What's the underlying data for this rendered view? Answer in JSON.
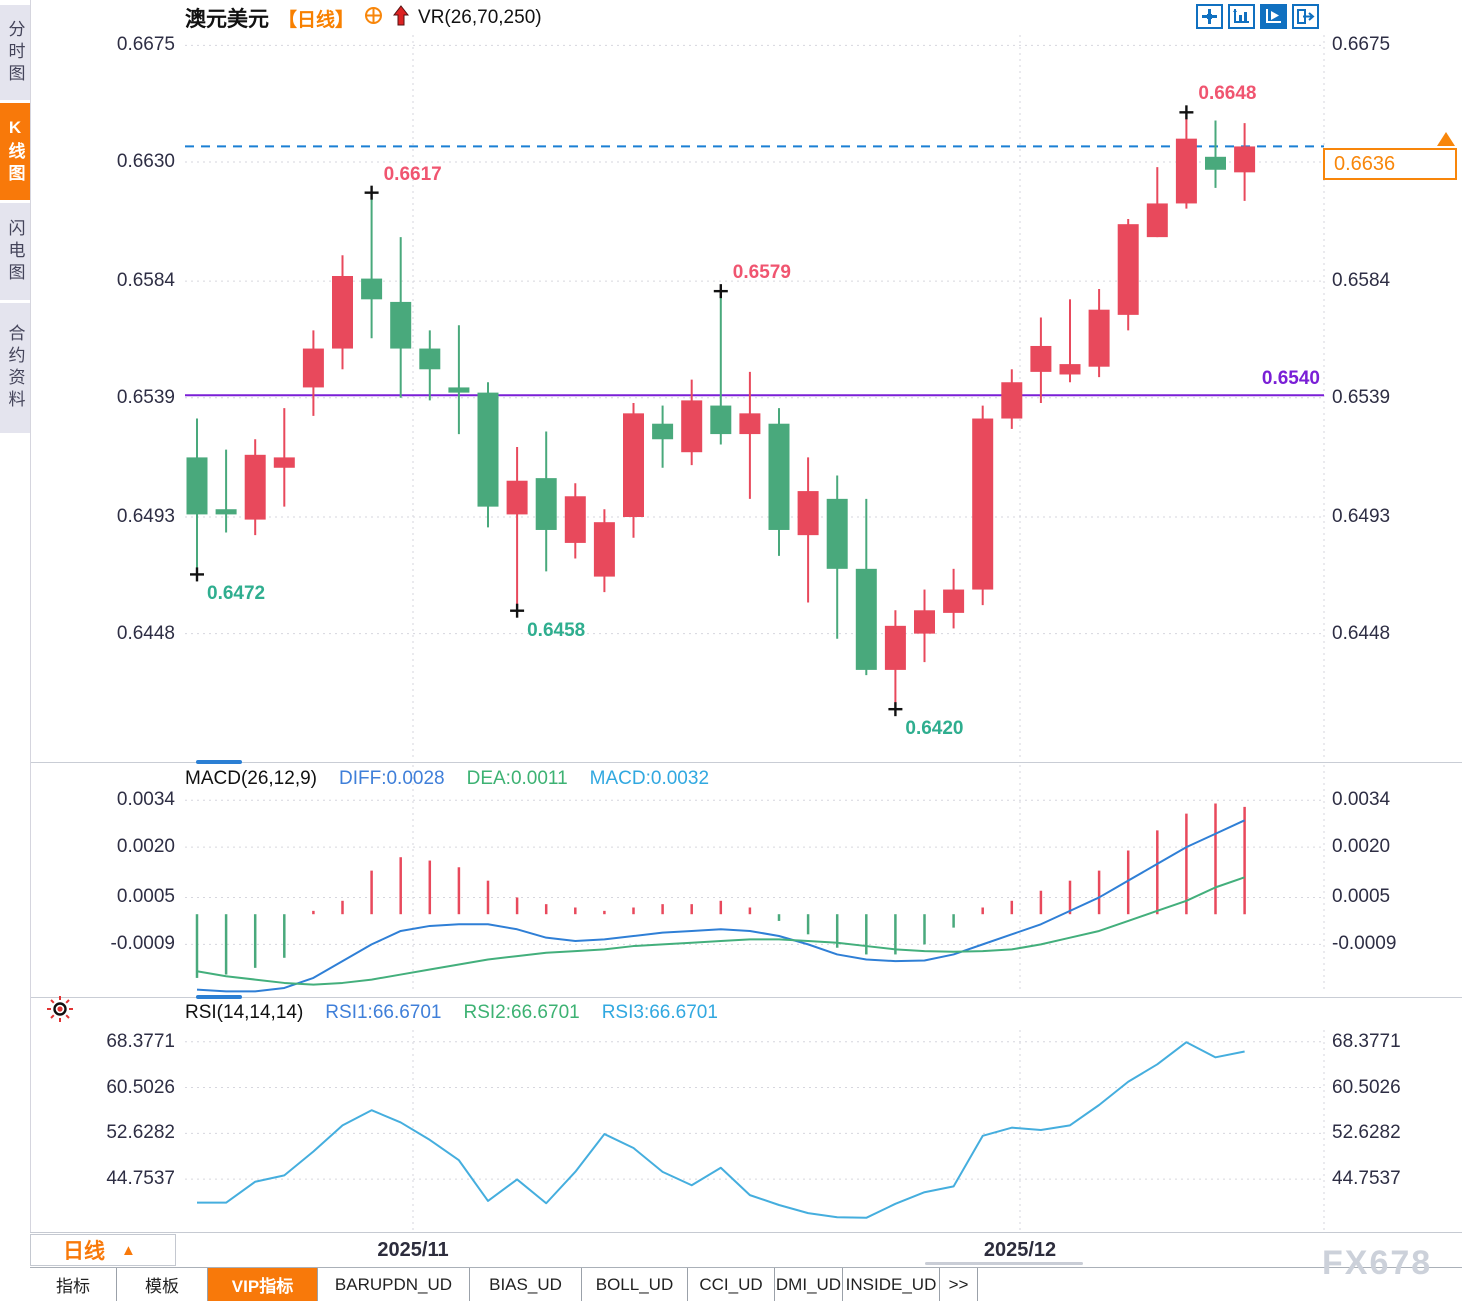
{
  "header": {
    "symbol": "澳元美元",
    "period_tag": "【日线】",
    "indicator": "VR(26,70,250)",
    "icons": [
      "target-circle-icon",
      "red-up-arrow-icon"
    ]
  },
  "sidebar": {
    "items": [
      {
        "label": "分时图",
        "active": false
      },
      {
        "label": "K线图",
        "active": true
      },
      {
        "label": "闪电图",
        "active": false
      },
      {
        "label": "合约资料",
        "active": false
      }
    ]
  },
  "toolbar": {
    "buttons": [
      "pan-tool-icon",
      "axis-range-icon",
      "axis-track-icon",
      "jump-to-latest-icon"
    ],
    "active_index": 2
  },
  "main_panel": {
    "last_price": "0.6636",
    "support_label": "0.6540"
  },
  "macd_panel": {
    "title": "MACD(26,12,9)",
    "diff": "DIFF:0.0028",
    "dea": "DEA:0.0011",
    "macd": "MACD:0.0032"
  },
  "rsi_panel": {
    "title": "RSI(14,14,14)",
    "rsi1": "RSI1:66.6701",
    "rsi2": "RSI2:66.6701",
    "rsi3": "RSI3:66.6701"
  },
  "bottom_bar": {
    "period_label": "日线",
    "period_arrow": "▲",
    "watermark": "FX678"
  },
  "tabs": [
    "指标",
    "模板",
    "VIP指标",
    "BARUPDN_UD",
    "BIAS_UD",
    "BOLL_UD",
    "CCI_UD",
    "DMI_UD",
    "INSIDE_UD",
    ">>"
  ],
  "colors": {
    "up": "#e8495c",
    "down": "#49a97c",
    "accent_orange": "#f8790a",
    "blue_dashed": "#1a7fd4",
    "purple_line": "#7a1fd6",
    "diff_blue": "#2f7fd6",
    "dea_green": "#43af7c",
    "rsi_cyan": "#45aede",
    "high_label": "#f05570",
    "low_label": "#2fae8f",
    "grid": "#d6d6de"
  },
  "chart_data": [
    {
      "type": "candlestick",
      "title": "澳元美元 日线",
      "yticks": [
        "0.6675",
        "0.6630",
        "0.6584",
        "0.6539",
        "0.6493",
        "0.6448"
      ],
      "ylim": [
        0.64,
        0.6679
      ],
      "grid": true,
      "x_dates": [
        "2025/11",
        "2025/12"
      ],
      "candles": [
        [
          0.6516,
          0.6531,
          0.6472,
          0.6494
        ],
        [
          0.6496,
          0.6519,
          0.6487,
          0.6494
        ],
        [
          0.6492,
          0.6523,
          0.6486,
          0.6517
        ],
        [
          0.6512,
          0.6535,
          0.6497,
          0.6516
        ],
        [
          0.6543,
          0.6565,
          0.6532,
          0.6558
        ],
        [
          0.6558,
          0.6594,
          0.655,
          0.6586
        ],
        [
          0.6585,
          0.6617,
          0.6562,
          0.6577
        ],
        [
          0.6576,
          0.6601,
          0.6539,
          0.6558
        ],
        [
          0.6558,
          0.6565,
          0.6538,
          0.655
        ],
        [
          0.6543,
          0.6567,
          0.6525,
          0.6541
        ],
        [
          0.6541,
          0.6545,
          0.6489,
          0.6497
        ],
        [
          0.6494,
          0.652,
          0.6458,
          0.6507
        ],
        [
          0.6508,
          0.6526,
          0.6472,
          0.6488
        ],
        [
          0.6483,
          0.6506,
          0.6477,
          0.6501
        ],
        [
          0.647,
          0.6496,
          0.6464,
          0.6491
        ],
        [
          0.6493,
          0.6537,
          0.6485,
          0.6533
        ],
        [
          0.6529,
          0.6536,
          0.6512,
          0.6523
        ],
        [
          0.6518,
          0.6546,
          0.6513,
          0.6538
        ],
        [
          0.6536,
          0.6579,
          0.6521,
          0.6525
        ],
        [
          0.6525,
          0.6549,
          0.65,
          0.6533
        ],
        [
          0.6529,
          0.6535,
          0.6478,
          0.6488
        ],
        [
          0.6486,
          0.6516,
          0.646,
          0.6503
        ],
        [
          0.65,
          0.6509,
          0.6446,
          0.6473
        ],
        [
          0.6473,
          0.65,
          0.6432,
          0.6434
        ],
        [
          0.6434,
          0.6457,
          0.642,
          0.6451
        ],
        [
          0.6448,
          0.6465,
          0.6437,
          0.6457
        ],
        [
          0.6456,
          0.6473,
          0.645,
          0.6465
        ],
        [
          0.6465,
          0.6536,
          0.6459,
          0.6531
        ],
        [
          0.6531,
          0.655,
          0.6527,
          0.6545
        ],
        [
          0.6549,
          0.657,
          0.6537,
          0.6559
        ],
        [
          0.6548,
          0.6577,
          0.6545,
          0.6552
        ],
        [
          0.6551,
          0.6581,
          0.6547,
          0.6573
        ],
        [
          0.6571,
          0.6608,
          0.6565,
          0.6606
        ],
        [
          0.6601,
          0.6628,
          0.6601,
          0.6614
        ],
        [
          0.6614,
          0.6648,
          0.6612,
          0.6639
        ],
        [
          0.6632,
          0.6646,
          0.662,
          0.6627
        ],
        [
          0.6626,
          0.6645,
          0.6615,
          0.6636
        ]
      ],
      "markers": [
        {
          "candle": 0,
          "type": "low",
          "label": "0.6472"
        },
        {
          "candle": 6,
          "type": "high",
          "label": "0.6617"
        },
        {
          "candle": 11,
          "type": "low",
          "label": "0.6458"
        },
        {
          "candle": 18,
          "type": "high",
          "label": "0.6579"
        },
        {
          "candle": 24,
          "type": "low",
          "label": "0.6420"
        },
        {
          "candle": 34,
          "type": "high",
          "label": "0.6648"
        }
      ],
      "hlines": [
        {
          "value": 0.654,
          "label": "0.6540",
          "style": "solid",
          "color": "purple_line"
        },
        {
          "value": 0.6636,
          "label": "0.6636",
          "style": "dashed",
          "color": "blue_dashed"
        }
      ],
      "last_price": 0.6636
    },
    {
      "type": "macd",
      "title": "MACD(26,12,9)",
      "yticks": [
        "0.0034",
        "0.0020",
        "0.0005",
        "-0.0009"
      ],
      "ylim": [
        -0.00235,
        0.00445
      ],
      "histogram": [
        -0.0019,
        -0.0018,
        -0.0016,
        -0.0013,
        0.0001,
        0.0004,
        0.0013,
        0.0017,
        0.0016,
        0.0014,
        0.001,
        0.0005,
        0.0003,
        0.0002,
        0.0001,
        0.0002,
        0.0003,
        0.0003,
        0.0004,
        0.0002,
        -0.0002,
        -0.0006,
        -0.001,
        -0.0012,
        -0.0012,
        -0.0009,
        -0.0004,
        0.0002,
        0.0004,
        0.0007,
        0.001,
        0.0013,
        0.0019,
        0.0025,
        0.003,
        0.0033,
        0.0032
      ],
      "series": [
        {
          "name": "DIFF",
          "color": "diff_blue",
          "values": [
            -0.00225,
            -0.0023,
            -0.0023,
            -0.0022,
            -0.0019,
            -0.0014,
            -0.0009,
            -0.0005,
            -0.00035,
            -0.0003,
            -0.0003,
            -0.00045,
            -0.0007,
            -0.0008,
            -0.00075,
            -0.00065,
            -0.00055,
            -0.0005,
            -0.00045,
            -0.0005,
            -0.00065,
            -0.0009,
            -0.0012,
            -0.00135,
            -0.0014,
            -0.00138,
            -0.0012,
            -0.0009,
            -0.0006,
            -0.0003,
            0.0001,
            0.0005,
            0.001,
            0.0015,
            0.002,
            0.0024,
            0.0028
          ]
        },
        {
          "name": "DEA",
          "color": "dea_green",
          "values": [
            -0.0017,
            -0.00185,
            -0.00195,
            -0.00205,
            -0.0021,
            -0.00205,
            -0.00195,
            -0.0018,
            -0.00165,
            -0.0015,
            -0.00135,
            -0.00125,
            -0.00115,
            -0.0011,
            -0.00105,
            -0.00095,
            -0.0009,
            -0.00085,
            -0.0008,
            -0.00075,
            -0.00075,
            -0.0008,
            -0.00085,
            -0.00095,
            -0.00105,
            -0.0011,
            -0.00112,
            -0.0011,
            -0.00105,
            -0.0009,
            -0.0007,
            -0.0005,
            -0.0002,
            0.0001,
            0.0004,
            0.0008,
            0.0011
          ]
        }
      ],
      "current": {
        "diff": 0.0028,
        "dea": 0.0011,
        "macd": 0.0032
      }
    },
    {
      "type": "line",
      "title": "RSI(14,14,14)",
      "yticks": [
        "68.3771",
        "60.5026",
        "52.6282",
        "44.7537"
      ],
      "ylim": [
        36.0,
        70.4
      ],
      "series": [
        {
          "name": "RSI",
          "color": "rsi_cyan",
          "values": [
            40.7,
            40.7,
            44.3,
            45.4,
            49.5,
            54.0,
            56.6,
            54.5,
            51.5,
            48.0,
            41.0,
            44.7,
            40.6,
            46.0,
            52.5,
            50.1,
            46.0,
            43.7,
            46.7,
            42.0,
            40.3,
            38.9,
            38.2,
            38.1,
            40.5,
            42.5,
            43.5,
            52.2,
            53.6,
            53.2,
            54.0,
            57.5,
            61.5,
            64.5,
            68.3,
            65.7,
            66.7
          ]
        }
      ],
      "current": 66.6701
    }
  ]
}
